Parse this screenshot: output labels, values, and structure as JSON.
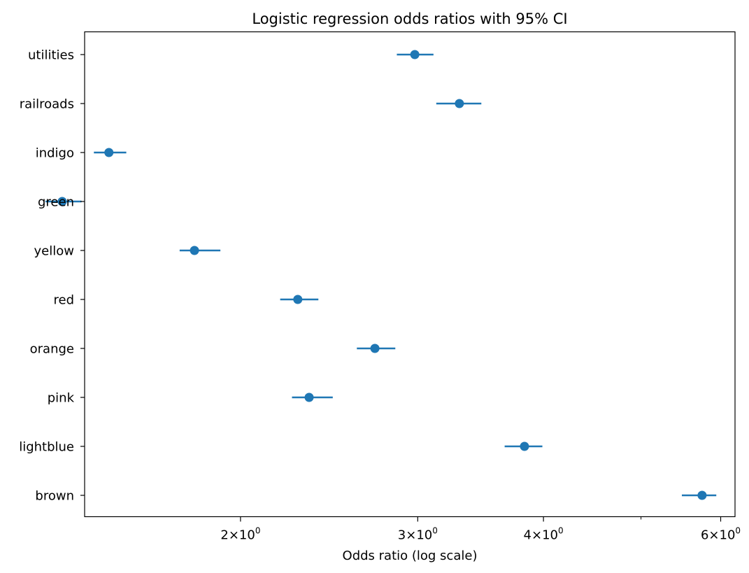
{
  "chart_data": {
    "type": "scatter",
    "title": "Logistic regression odds ratios with 95% CI",
    "xlabel": "Odds ratio (log scale)",
    "ylabel": "",
    "x_scale": "log",
    "xlim": [
      1.4,
      6.2
    ],
    "x_ticks": [
      {
        "value": 2,
        "base": "2",
        "exp": "0"
      },
      {
        "value": 3,
        "base": "3",
        "exp": "0"
      },
      {
        "value": 4,
        "base": "4",
        "exp": "0"
      },
      {
        "value": 6,
        "base": "6",
        "exp": "0"
      }
    ],
    "x_minor_ticks": [
      5
    ],
    "grid": false,
    "marker_color": "#1f77b4",
    "categories": [
      "utilities",
      "railroads",
      "indigo",
      "green",
      "yellow",
      "red",
      "orange",
      "pink",
      "lightblue",
      "brown"
    ],
    "odds_ratio": [
      2.98,
      3.3,
      1.48,
      1.33,
      1.8,
      2.28,
      2.72,
      2.34,
      3.83,
      5.75
    ],
    "ci_lower": [
      2.86,
      3.13,
      1.43,
      1.28,
      1.74,
      2.19,
      2.61,
      2.25,
      3.66,
      5.49
    ],
    "ci_upper": [
      3.11,
      3.47,
      1.54,
      1.39,
      1.91,
      2.39,
      2.85,
      2.47,
      3.99,
      5.94
    ]
  }
}
